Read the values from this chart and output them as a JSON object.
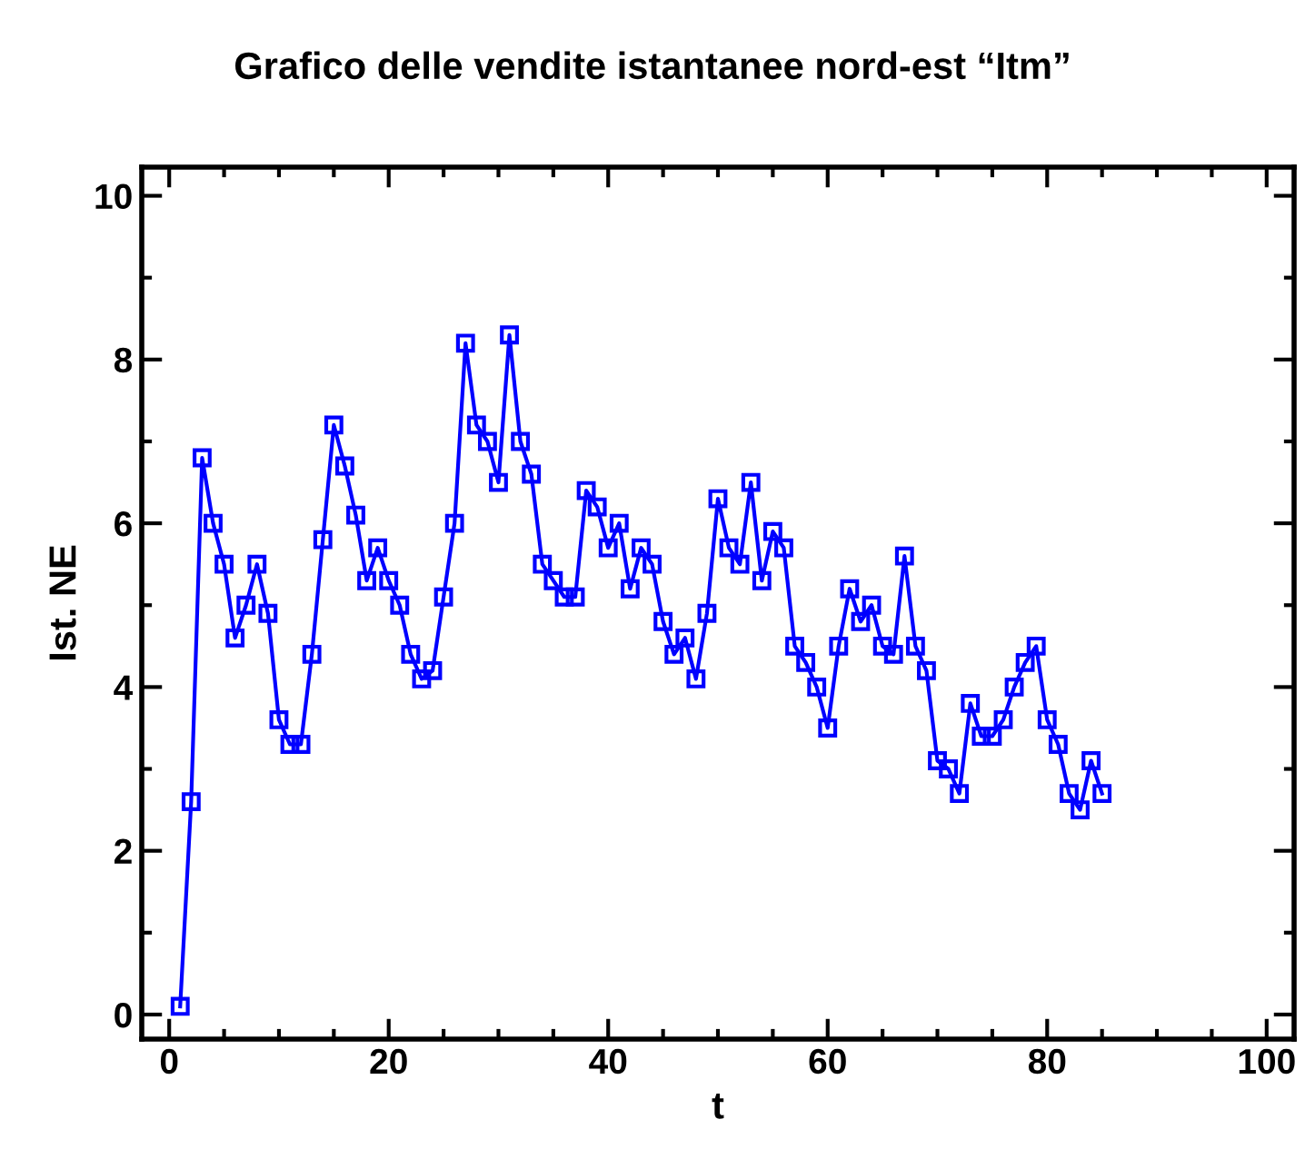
{
  "chart_data": {
    "type": "line",
    "title": "Grafico delle vendite istantanee nord-est “Itm”",
    "xlabel": "t",
    "ylabel": "Ist. NE",
    "x": [
      1,
      2,
      3,
      4,
      5,
      6,
      7,
      8,
      9,
      10,
      11,
      12,
      13,
      14,
      15,
      16,
      17,
      18,
      19,
      20,
      21,
      22,
      23,
      24,
      25,
      26,
      27,
      28,
      29,
      30,
      31,
      32,
      33,
      34,
      35,
      36,
      37,
      38,
      39,
      40,
      41,
      42,
      43,
      44,
      45,
      46,
      47,
      48,
      49,
      50,
      51,
      52,
      53,
      54,
      55,
      56,
      57,
      58,
      59,
      60,
      61,
      62,
      63,
      64,
      65,
      66,
      67,
      68,
      69,
      70,
      71,
      72,
      73,
      74,
      75,
      76,
      77,
      78,
      79,
      80,
      81,
      82,
      83,
      84,
      85
    ],
    "series": [
      {
        "color": "#0000ff",
        "values": [
          0.1,
          2.6,
          6.8,
          6.0,
          5.5,
          4.6,
          5.0,
          5.5,
          4.9,
          3.6,
          3.3,
          3.3,
          4.4,
          5.8,
          7.2,
          6.7,
          6.1,
          5.3,
          5.7,
          5.3,
          5.0,
          4.4,
          4.1,
          4.2,
          5.1,
          6.0,
          8.2,
          7.2,
          7.0,
          6.5,
          8.3,
          7.0,
          6.6,
          5.5,
          5.3,
          5.1,
          5.1,
          6.4,
          6.2,
          5.7,
          6.0,
          5.2,
          5.7,
          5.5,
          4.8,
          4.4,
          4.6,
          4.1,
          4.9,
          6.3,
          5.7,
          5.5,
          6.5,
          5.3,
          5.9,
          5.7,
          4.5,
          4.3,
          4.0,
          3.5,
          4.5,
          5.2,
          4.8,
          5.0,
          4.5,
          4.4,
          5.6,
          4.5,
          4.2,
          3.1,
          3.0,
          2.7,
          3.8,
          3.4,
          3.4,
          3.6,
          4.0,
          4.3,
          4.5,
          3.6,
          3.3,
          2.7,
          2.5,
          3.1,
          2.7
        ]
      }
    ],
    "xlim": [
      -2.5,
      102.5
    ],
    "xticks": [
      0,
      20,
      40,
      60,
      80,
      100
    ],
    "ylim": [
      -0.3,
      10.35
    ],
    "yticks": [
      0,
      2,
      4,
      6,
      8,
      10
    ],
    "marker": "square",
    "line_style": "solid",
    "grid": false,
    "legend": false
  }
}
